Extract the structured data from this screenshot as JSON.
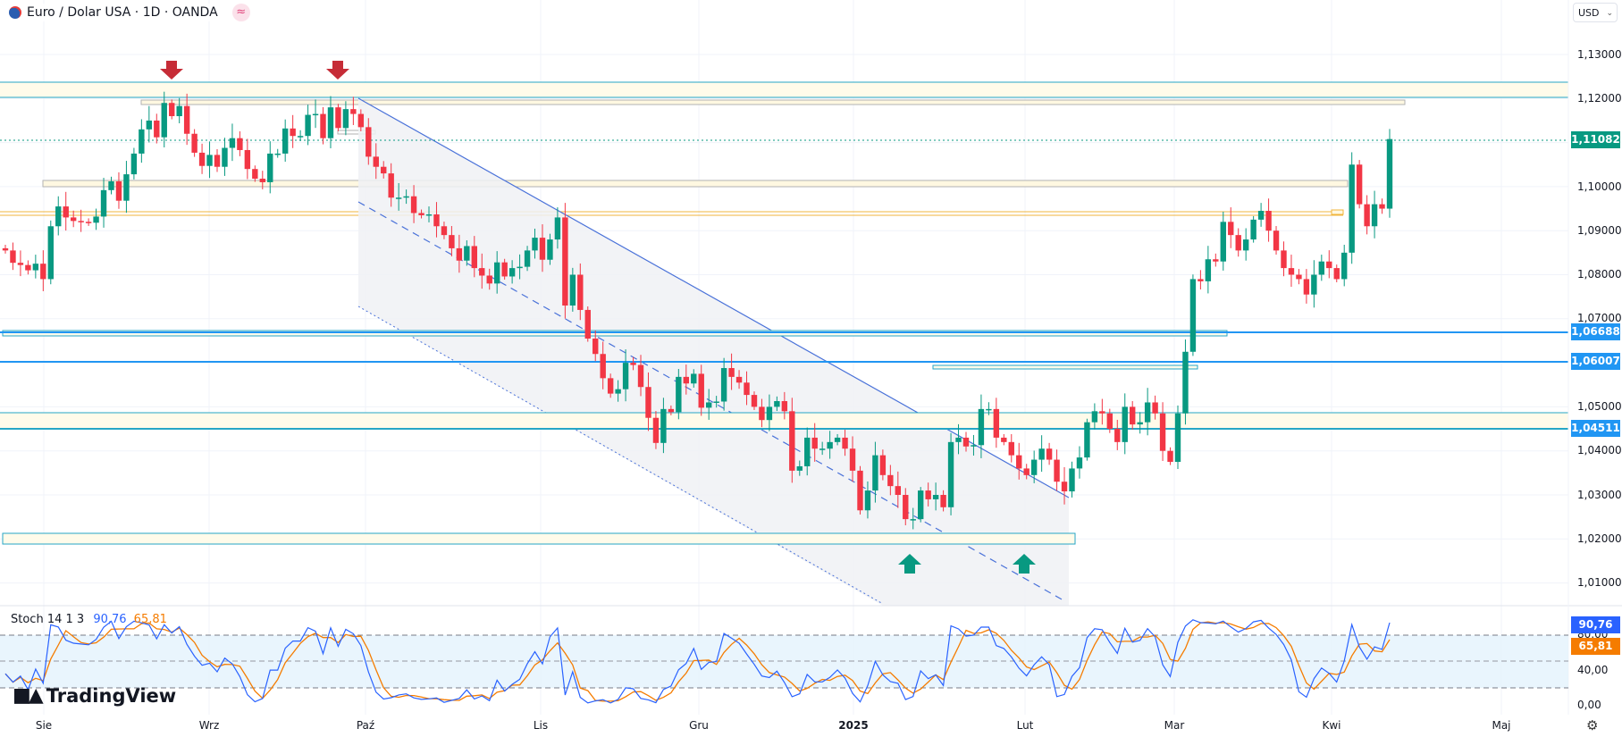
{
  "header": {
    "title": "Euro / Dolar USA · 1D · OANDA",
    "flag_icon": "eur-usd-flag-icon",
    "indicator_icon": "≈"
  },
  "currency_selector": {
    "label": "USD",
    "chevron": "⌄"
  },
  "price_axis": {
    "labels": [
      "1,13000",
      "1,12000",
      "1,10000",
      "1,09000",
      "1,08000",
      "1,07000",
      "1,05000",
      "1,04000",
      "1,03000",
      "1,02000",
      "1,01000"
    ]
  },
  "price_badges": [
    {
      "text": "1,11082",
      "color": "#089981"
    },
    {
      "text": "1,06688",
      "color": "#2196f3"
    },
    {
      "text": "1,06007",
      "color": "#2196f3"
    },
    {
      "text": "1,04511",
      "color": "#2196f3"
    }
  ],
  "time_axis": {
    "labels": [
      "Sie",
      "Wrz",
      "Paź",
      "Lis",
      "Gru",
      "2025",
      "Lut",
      "Mar",
      "Kwi",
      "Maj"
    ]
  },
  "stoch": {
    "legend": "Stoch 14 1 3",
    "k_value": "90,76",
    "d_value": "65,81",
    "k_color": "#2962ff",
    "d_color": "#f57c00",
    "axis_labels": [
      "80,00",
      "40,00",
      "0,00"
    ],
    "upper": 80,
    "middle": 50,
    "lower": 20
  },
  "logo": {
    "text": "TradingView",
    "mark": "17"
  },
  "settings_icon": "⚙",
  "colors": {
    "up": "#089981",
    "down": "#f23645"
  },
  "chart_data": {
    "type": "candlestick",
    "symbol": "EURUSD",
    "timeframe": "1D",
    "ylim": [
      1.005,
      1.135
    ],
    "last_price": 1.11082,
    "levels": [
      1.1237,
      1.1203,
      1.06688,
      1.06007,
      1.0485,
      1.04511
    ],
    "close": [
      1.0855,
      1.0827,
      1.0822,
      1.081,
      1.0825,
      1.079,
      1.091,
      1.0955,
      1.093,
      1.0922,
      1.092,
      1.0918,
      1.0932,
      1.0992,
      1.1012,
      1.0968,
      1.1028,
      1.1075,
      1.113,
      1.115,
      1.1112,
      1.119,
      1.116,
      1.1183,
      1.112,
      1.1077,
      1.1047,
      1.1072,
      1.1045,
      1.1088,
      1.111,
      1.1083,
      1.104,
      1.1018,
      1.101,
      1.1075,
      1.1075,
      1.1132,
      1.1115,
      1.1115,
      1.1163,
      1.1165,
      1.111,
      1.118,
      1.1133,
      1.1176,
      1.1165,
      1.1135,
      1.1068,
      1.1045,
      1.103,
      1.0975,
      1.0975,
      1.0978,
      1.094,
      1.0935,
      1.0937,
      1.091,
      1.089,
      1.086,
      1.0832,
      1.0865,
      1.0815,
      1.0798,
      1.078,
      1.0828,
      1.0796,
      1.0815,
      1.0818,
      1.0855,
      1.0884,
      1.0834,
      1.088,
      1.093,
      1.073,
      1.08,
      1.072,
      1.0655,
      1.062,
      1.0565,
      1.053,
      1.054,
      1.06,
      1.0595,
      1.0545,
      1.0475,
      1.0418,
      1.0495,
      1.0488,
      1.0568,
      1.0553,
      1.0575,
      1.0498,
      1.051,
      1.0512,
      1.0588,
      1.0568,
      1.0555,
      1.0527,
      1.05,
      1.047,
      1.05,
      1.0513,
      1.049,
      1.0355,
      1.0365,
      1.043,
      1.0405,
      1.0405,
      1.042,
      1.043,
      1.0405,
      1.0355,
      1.0265,
      1.031,
      1.039,
      1.0345,
      1.032,
      1.03,
      1.0245,
      1.0245,
      1.031,
      1.029,
      1.03,
      1.0272,
      1.042,
      1.043,
      1.041,
      1.0413,
      1.0495,
      1.0495,
      1.043,
      1.042,
      1.039,
      1.036,
      1.0345,
      1.038,
      1.0405,
      1.038,
      1.033,
      1.0308,
      1.036,
      1.0385,
      1.0465,
      1.049,
      1.0485,
      1.045,
      1.042,
      1.05,
      1.046,
      1.0465,
      1.051,
      1.0485,
      1.04,
      1.0375,
      1.0485,
      1.0625,
      1.079,
      1.0785,
      1.0835,
      1.083,
      1.092,
      1.089,
      1.0855,
      1.088,
      1.0925,
      1.0945,
      1.09,
      1.0855,
      1.0815,
      1.08,
      1.079,
      1.0755,
      1.08,
      1.083,
      1.0815,
      1.079,
      1.085,
      1.105,
      1.096,
      1.091,
      1.096,
      1.095,
      1.1108
    ]
  }
}
